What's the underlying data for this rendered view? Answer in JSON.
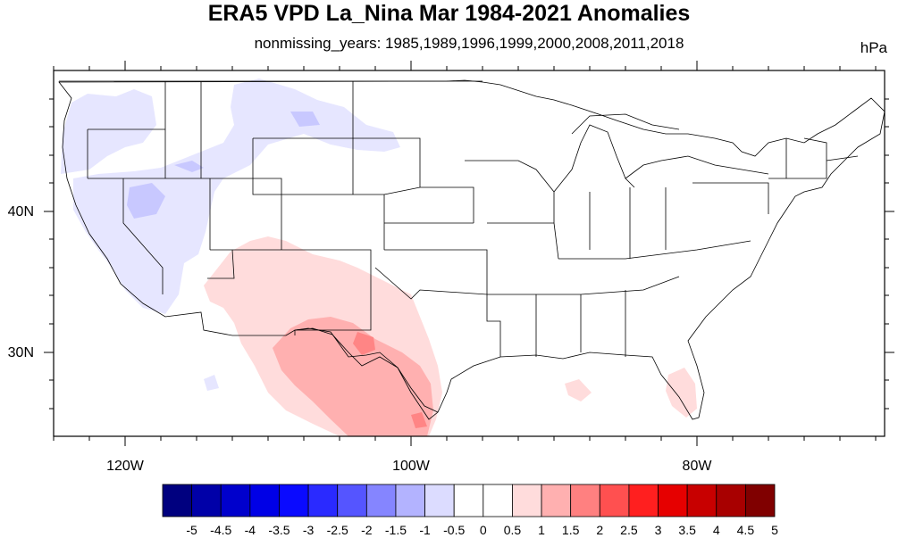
{
  "title": "ERA5 VPD La_Nina Mar 1984-2021 Anomalies",
  "subtitle": "nonmissing_years: 1985,1989,1996,1999,2000,2008,2011,2018",
  "units": "hPa",
  "map": {
    "lon_range": [
      -125,
      -67
    ],
    "lat_range": [
      24,
      50
    ],
    "x_ticks": [
      {
        "label": "120W"
      },
      {
        "label": "100W"
      },
      {
        "label": "80W"
      }
    ],
    "y_ticks": [
      {
        "label": "40N"
      },
      {
        "label": "30N"
      }
    ]
  },
  "colorbar": {
    "labels": [
      "-5",
      "-4.5",
      "-4",
      "-3.5",
      "-3",
      "-2.5",
      "-2",
      "-1.5",
      "-1",
      "-0.5",
      "0",
      "0.5",
      "1",
      "1.5",
      "2",
      "2.5",
      "3",
      "3.5",
      "4",
      "4.5",
      "5"
    ],
    "colors": [
      "#00007f",
      "#0000a8",
      "#0000cc",
      "#0000e6",
      "#0a0aff",
      "#2a2aff",
      "#5555ff",
      "#8585ff",
      "#b3b3ff",
      "#dcdcff",
      "#ffffff",
      "#ffffff",
      "#ffdcdc",
      "#ffb0b0",
      "#ff8080",
      "#ff5050",
      "#ff1f1f",
      "#e60000",
      "#c80000",
      "#a80000",
      "#800000"
    ]
  },
  "colors": {
    "neg_light": "#e6e6ff",
    "neg_mid": "#c8c8ff",
    "neg_dark": "#a7a7f5",
    "pos_light": "#ffdcdc",
    "pos_mid": "#ffb0b0",
    "pos_dark": "#ff8585"
  }
}
